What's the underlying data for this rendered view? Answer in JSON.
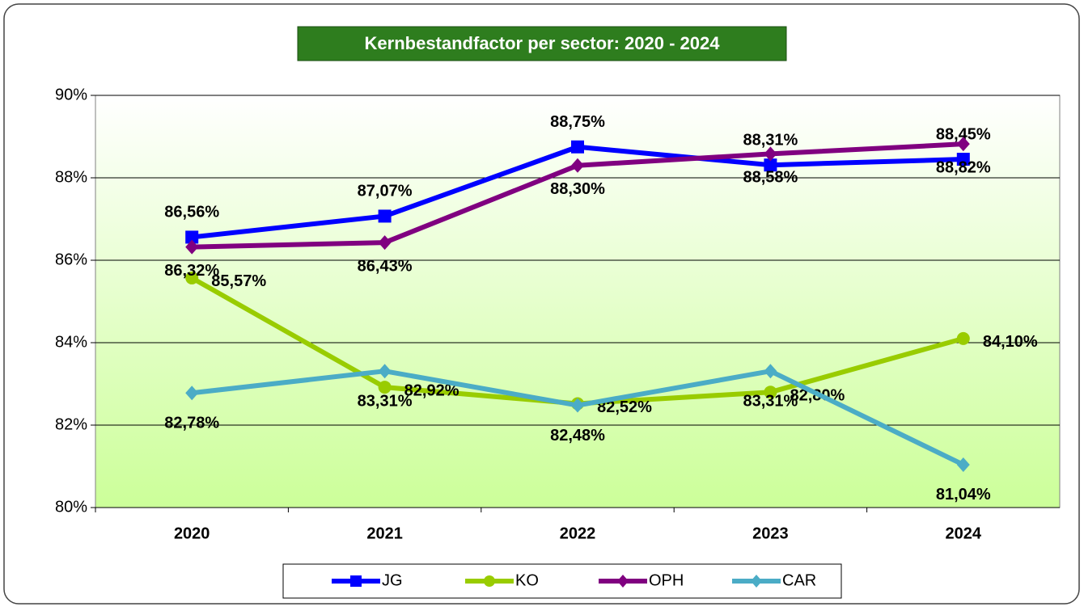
{
  "chart_data": {
    "type": "line",
    "title": "Kernbestandfactor per sector: 2020 - 2024",
    "categories": [
      "2020",
      "2021",
      "2022",
      "2023",
      "2024"
    ],
    "series": [
      {
        "name": "JG",
        "color": "#0000ff",
        "marker": "square",
        "values": [
          86.56,
          87.07,
          88.75,
          88.31,
          88.45
        ],
        "value_labels": [
          "86,56%",
          "87,07%",
          "88,75%",
          "88,31%",
          "88,45%"
        ]
      },
      {
        "name": "KO",
        "color": "#99cc00",
        "marker": "circle",
        "values": [
          85.57,
          82.92,
          82.52,
          82.8,
          84.1
        ],
        "value_labels": [
          "85,57%",
          "82,92%",
          "82,52%",
          "82,80%",
          "84,10%"
        ]
      },
      {
        "name": "OPH",
        "color": "#800080",
        "marker": "diamond",
        "values": [
          86.32,
          86.43,
          88.3,
          88.58,
          88.82
        ],
        "value_labels": [
          "86,32%",
          "86,43%",
          "88,30%",
          "88,58%",
          "88,82%"
        ]
      },
      {
        "name": "CAR",
        "color": "#4bacc6",
        "marker": "diamond",
        "values": [
          82.78,
          83.31,
          82.48,
          83.31,
          81.04
        ],
        "value_labels": [
          "82,78%",
          "83,31%",
          "82,48%",
          "83,31%",
          "81,04%"
        ]
      }
    ],
    "ylim": [
      80,
      90
    ],
    "yticks": [
      {
        "value": 80,
        "label": "80%"
      },
      {
        "value": 82,
        "label": "82%"
      },
      {
        "value": 84,
        "label": "84%"
      },
      {
        "value": 86,
        "label": "86%"
      },
      {
        "value": 88,
        "label": "88%"
      },
      {
        "value": 90,
        "label": "90%"
      }
    ],
    "grid": true,
    "legend": "bottom"
  }
}
